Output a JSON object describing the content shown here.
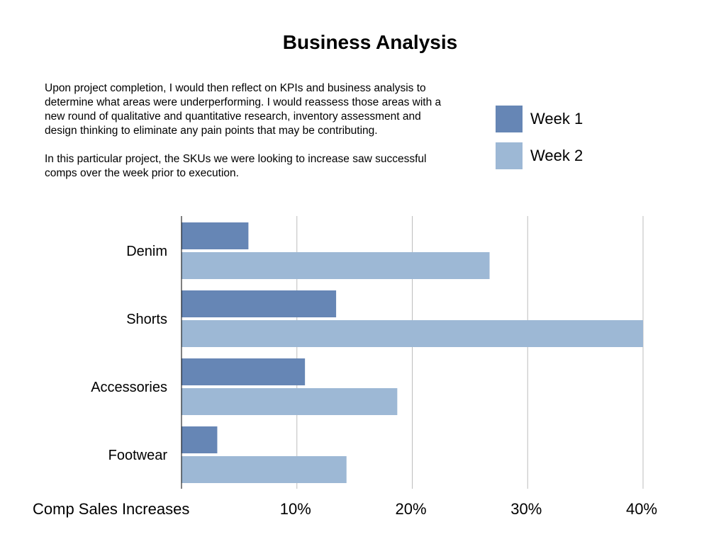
{
  "title": "Business Analysis",
  "description": {
    "paragraph_1": "Upon project completion, I would then reflect on KPIs and business analysis to determine what areas were underperforming. I would reassess those areas with a new round of qualitative and quantitative research, inventory assessment and design thinking to eliminate any pain points that may be contributing.",
    "paragraph_2": "In this particular project, the SKUs we were looking to increase saw successful comps over the week prior to execution."
  },
  "chart_data": {
    "type": "bar",
    "orientation": "horizontal",
    "categories": [
      "Denim",
      "Shorts",
      "Accessories",
      "Footwear"
    ],
    "series": [
      {
        "name": "Week 1",
        "color": "#6686b5",
        "values": [
          5.8,
          13.4,
          10.7,
          3.1
        ]
      },
      {
        "name": "Week 2",
        "color": "#9db8d5",
        "values": [
          26.7,
          40,
          18.7,
          14.3
        ]
      }
    ],
    "xlabel": "Comp Sales Increases",
    "xlim": [
      0,
      40
    ],
    "ticks": [
      10,
      20,
      30,
      40
    ],
    "tick_labels": [
      "10%",
      "20%",
      "30%",
      "40%"
    ],
    "grid": "vertical",
    "legend_position": "top-right"
  }
}
